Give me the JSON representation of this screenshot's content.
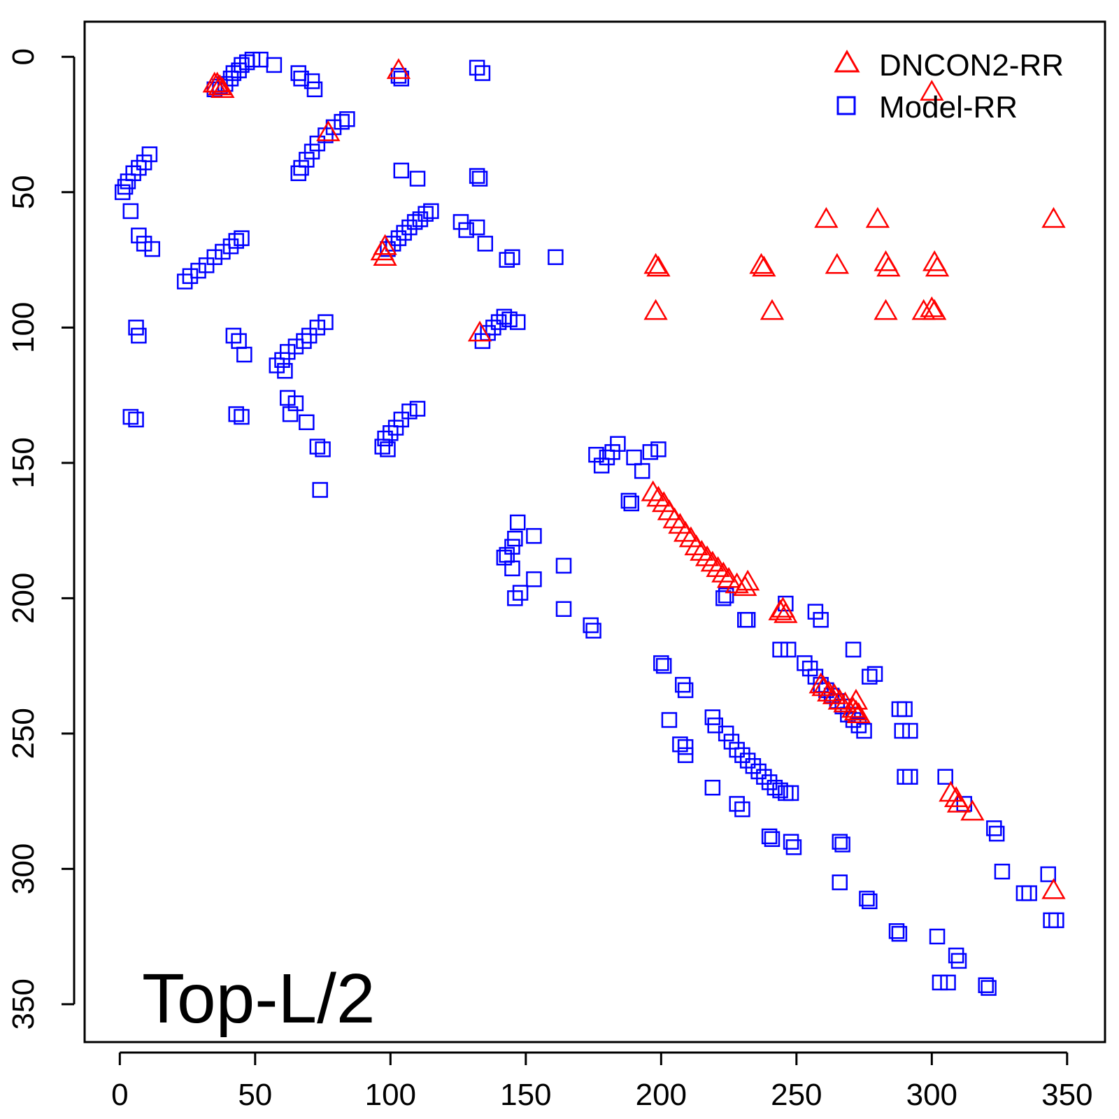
{
  "chart_data": {
    "type": "scatter",
    "title": "",
    "xlabel": "",
    "ylabel": "",
    "xlim": [
      -13,
      364
    ],
    "ylim": [
      -13,
      364
    ],
    "y_axis_inverted": true,
    "xticks": [
      0,
      50,
      100,
      150,
      200,
      250,
      300,
      350
    ],
    "yticks": [
      0,
      50,
      100,
      150,
      200,
      250,
      300,
      350
    ],
    "annotation": "Top-L/2",
    "legend": {
      "position": "top-right"
    },
    "series": [
      {
        "name": "DNCON2-RR",
        "marker": "triangle",
        "color": "#ff0000",
        "points": [
          [
            35,
            10
          ],
          [
            36,
            10
          ],
          [
            37,
            11
          ],
          [
            38,
            12
          ],
          [
            103,
            5
          ],
          [
            77,
            28
          ],
          [
            300,
            13
          ],
          [
            261,
            60
          ],
          [
            280,
            60
          ],
          [
            345,
            60
          ],
          [
            97,
            72
          ],
          [
            98,
            70
          ],
          [
            98,
            74
          ],
          [
            198,
            77
          ],
          [
            199,
            78
          ],
          [
            237,
            77
          ],
          [
            238,
            78
          ],
          [
            265,
            77
          ],
          [
            283,
            76
          ],
          [
            284,
            78
          ],
          [
            301,
            76
          ],
          [
            302,
            78
          ],
          [
            198,
            94
          ],
          [
            241,
            94
          ],
          [
            283,
            94
          ],
          [
            297,
            94
          ],
          [
            300,
            93
          ],
          [
            301,
            94
          ],
          [
            133,
            102
          ],
          [
            197,
            161
          ],
          [
            199,
            163
          ],
          [
            201,
            165
          ],
          [
            203,
            168
          ],
          [
            205,
            171
          ],
          [
            207,
            173
          ],
          [
            209,
            176
          ],
          [
            211,
            178
          ],
          [
            213,
            181
          ],
          [
            215,
            183
          ],
          [
            217,
            185
          ],
          [
            219,
            187
          ],
          [
            221,
            189
          ],
          [
            223,
            191
          ],
          [
            225,
            193
          ],
          [
            228,
            195
          ],
          [
            231,
            196
          ],
          [
            232,
            194
          ],
          [
            244,
            205
          ],
          [
            245,
            204
          ],
          [
            246,
            206
          ],
          [
            259,
            232
          ],
          [
            260,
            233
          ],
          [
            262,
            235
          ],
          [
            264,
            236
          ],
          [
            266,
            238
          ],
          [
            268,
            239
          ],
          [
            271,
            241
          ],
          [
            272,
            242
          ],
          [
            273,
            243
          ],
          [
            272,
            238
          ],
          [
            307,
            272
          ],
          [
            309,
            274
          ],
          [
            310,
            276
          ],
          [
            315,
            279
          ],
          [
            345,
            308
          ]
        ]
      },
      {
        "name": "Model-RR",
        "marker": "square",
        "color": "#0000ff",
        "points": [
          [
            35,
            12
          ],
          [
            37,
            11
          ],
          [
            39,
            10
          ],
          [
            41,
            8
          ],
          [
            42,
            6
          ],
          [
            44,
            5
          ],
          [
            45,
            3
          ],
          [
            47,
            2
          ],
          [
            49,
            1
          ],
          [
            52,
            1
          ],
          [
            57,
            3
          ],
          [
            66,
            6
          ],
          [
            67,
            8
          ],
          [
            71,
            9
          ],
          [
            72,
            12
          ],
          [
            103,
            7
          ],
          [
            104,
            8
          ],
          [
            132,
            4
          ],
          [
            134,
            6
          ],
          [
            79,
            26
          ],
          [
            76,
            29
          ],
          [
            73,
            32
          ],
          [
            71,
            35
          ],
          [
            69,
            38
          ],
          [
            67,
            41
          ],
          [
            66,
            43
          ],
          [
            82,
            24
          ],
          [
            84,
            23
          ],
          [
            104,
            42
          ],
          [
            110,
            45
          ],
          [
            132,
            44
          ],
          [
            133,
            45
          ],
          [
            11,
            36
          ],
          [
            9,
            39
          ],
          [
            7,
            41
          ],
          [
            5,
            43
          ],
          [
            3,
            46
          ],
          [
            2,
            48
          ],
          [
            1,
            50
          ],
          [
            4,
            57
          ],
          [
            7,
            66
          ],
          [
            9,
            69
          ],
          [
            12,
            71
          ],
          [
            45,
            67
          ],
          [
            43,
            68
          ],
          [
            41,
            70
          ],
          [
            38,
            72
          ],
          [
            35,
            74
          ],
          [
            32,
            77
          ],
          [
            29,
            79
          ],
          [
            26,
            81
          ],
          [
            24,
            83
          ],
          [
            105,
            65
          ],
          [
            107,
            63
          ],
          [
            109,
            61
          ],
          [
            111,
            60
          ],
          [
            113,
            58
          ],
          [
            115,
            57
          ],
          [
            99,
            71
          ],
          [
            101,
            69
          ],
          [
            103,
            67
          ],
          [
            126,
            61
          ],
          [
            128,
            64
          ],
          [
            132,
            63
          ],
          [
            135,
            69
          ],
          [
            143,
            75
          ],
          [
            145,
            74
          ],
          [
            161,
            74
          ],
          [
            6,
            100
          ],
          [
            7,
            103
          ],
          [
            42,
            103
          ],
          [
            44,
            105
          ],
          [
            46,
            110
          ],
          [
            76,
            98
          ],
          [
            73,
            100
          ],
          [
            70,
            103
          ],
          [
            68,
            105
          ],
          [
            65,
            107
          ],
          [
            62,
            109
          ],
          [
            60,
            112
          ],
          [
            58,
            114
          ],
          [
            61,
            116
          ],
          [
            142,
            96
          ],
          [
            140,
            98
          ],
          [
            138,
            100
          ],
          [
            136,
            102
          ],
          [
            134,
            105
          ],
          [
            144,
            97
          ],
          [
            147,
            98
          ],
          [
            4,
            133
          ],
          [
            6,
            134
          ],
          [
            43,
            132
          ],
          [
            45,
            133
          ],
          [
            62,
            126
          ],
          [
            65,
            128
          ],
          [
            63,
            132
          ],
          [
            69,
            135
          ],
          [
            73,
            144
          ],
          [
            75,
            145
          ],
          [
            74,
            160
          ],
          [
            107,
            131
          ],
          [
            104,
            134
          ],
          [
            102,
            137
          ],
          [
            100,
            139
          ],
          [
            98,
            141
          ],
          [
            97,
            144
          ],
          [
            99,
            145
          ],
          [
            110,
            130
          ],
          [
            184,
            143
          ],
          [
            182,
            146
          ],
          [
            180,
            148
          ],
          [
            178,
            151
          ],
          [
            176,
            147
          ],
          [
            190,
            148
          ],
          [
            193,
            153
          ],
          [
            196,
            146
          ],
          [
            199,
            145
          ],
          [
            188,
            164
          ],
          [
            189,
            165
          ],
          [
            147,
            172
          ],
          [
            146,
            178
          ],
          [
            145,
            181
          ],
          [
            143,
            184
          ],
          [
            142,
            185
          ],
          [
            145,
            189
          ],
          [
            148,
            198
          ],
          [
            146,
            200
          ],
          [
            153,
            177
          ],
          [
            153,
            193
          ],
          [
            164,
            188
          ],
          [
            164,
            204
          ],
          [
            174,
            210
          ],
          [
            175,
            212
          ],
          [
            223,
            200
          ],
          [
            224,
            199
          ],
          [
            231,
            208
          ],
          [
            232,
            208
          ],
          [
            246,
            202
          ],
          [
            257,
            205
          ],
          [
            259,
            208
          ],
          [
            244,
            219
          ],
          [
            247,
            219
          ],
          [
            253,
            224
          ],
          [
            255,
            226
          ],
          [
            257,
            229
          ],
          [
            259,
            232
          ],
          [
            261,
            234
          ],
          [
            263,
            236
          ],
          [
            265,
            238
          ],
          [
            267,
            240
          ],
          [
            269,
            243
          ],
          [
            271,
            245
          ],
          [
            273,
            247
          ],
          [
            275,
            249
          ],
          [
            271,
            219
          ],
          [
            277,
            229
          ],
          [
            279,
            228
          ],
          [
            200,
            224
          ],
          [
            201,
            225
          ],
          [
            208,
            232
          ],
          [
            209,
            234
          ],
          [
            203,
            245
          ],
          [
            219,
            244
          ],
          [
            220,
            247
          ],
          [
            207,
            254
          ],
          [
            209,
            255
          ],
          [
            209,
            258
          ],
          [
            224,
            250
          ],
          [
            226,
            253
          ],
          [
            228,
            256
          ],
          [
            230,
            258
          ],
          [
            232,
            260
          ],
          [
            234,
            262
          ],
          [
            236,
            264
          ],
          [
            238,
            266
          ],
          [
            240,
            268
          ],
          [
            242,
            270
          ],
          [
            244,
            271
          ],
          [
            246,
            272
          ],
          [
            248,
            272
          ],
          [
            219,
            270
          ],
          [
            228,
            276
          ],
          [
            230,
            278
          ],
          [
            240,
            288
          ],
          [
            241,
            289
          ],
          [
            248,
            290
          ],
          [
            249,
            292
          ],
          [
            266,
            290
          ],
          [
            267,
            291
          ],
          [
            266,
            305
          ],
          [
            276,
            311
          ],
          [
            277,
            312
          ],
          [
            287,
            323
          ],
          [
            288,
            324
          ],
          [
            288,
            241
          ],
          [
            290,
            241
          ],
          [
            289,
            249
          ],
          [
            292,
            249
          ],
          [
            290,
            266
          ],
          [
            292,
            266
          ],
          [
            305,
            266
          ],
          [
            312,
            276
          ],
          [
            323,
            285
          ],
          [
            324,
            287
          ],
          [
            326,
            301
          ],
          [
            334,
            309
          ],
          [
            336,
            309
          ],
          [
            343,
            302
          ],
          [
            344,
            319
          ],
          [
            346,
            319
          ],
          [
            302,
            325
          ],
          [
            303,
            342
          ],
          [
            306,
            342
          ],
          [
            309,
            332
          ],
          [
            310,
            334
          ],
          [
            320,
            343
          ],
          [
            321,
            344
          ]
        ]
      }
    ]
  }
}
